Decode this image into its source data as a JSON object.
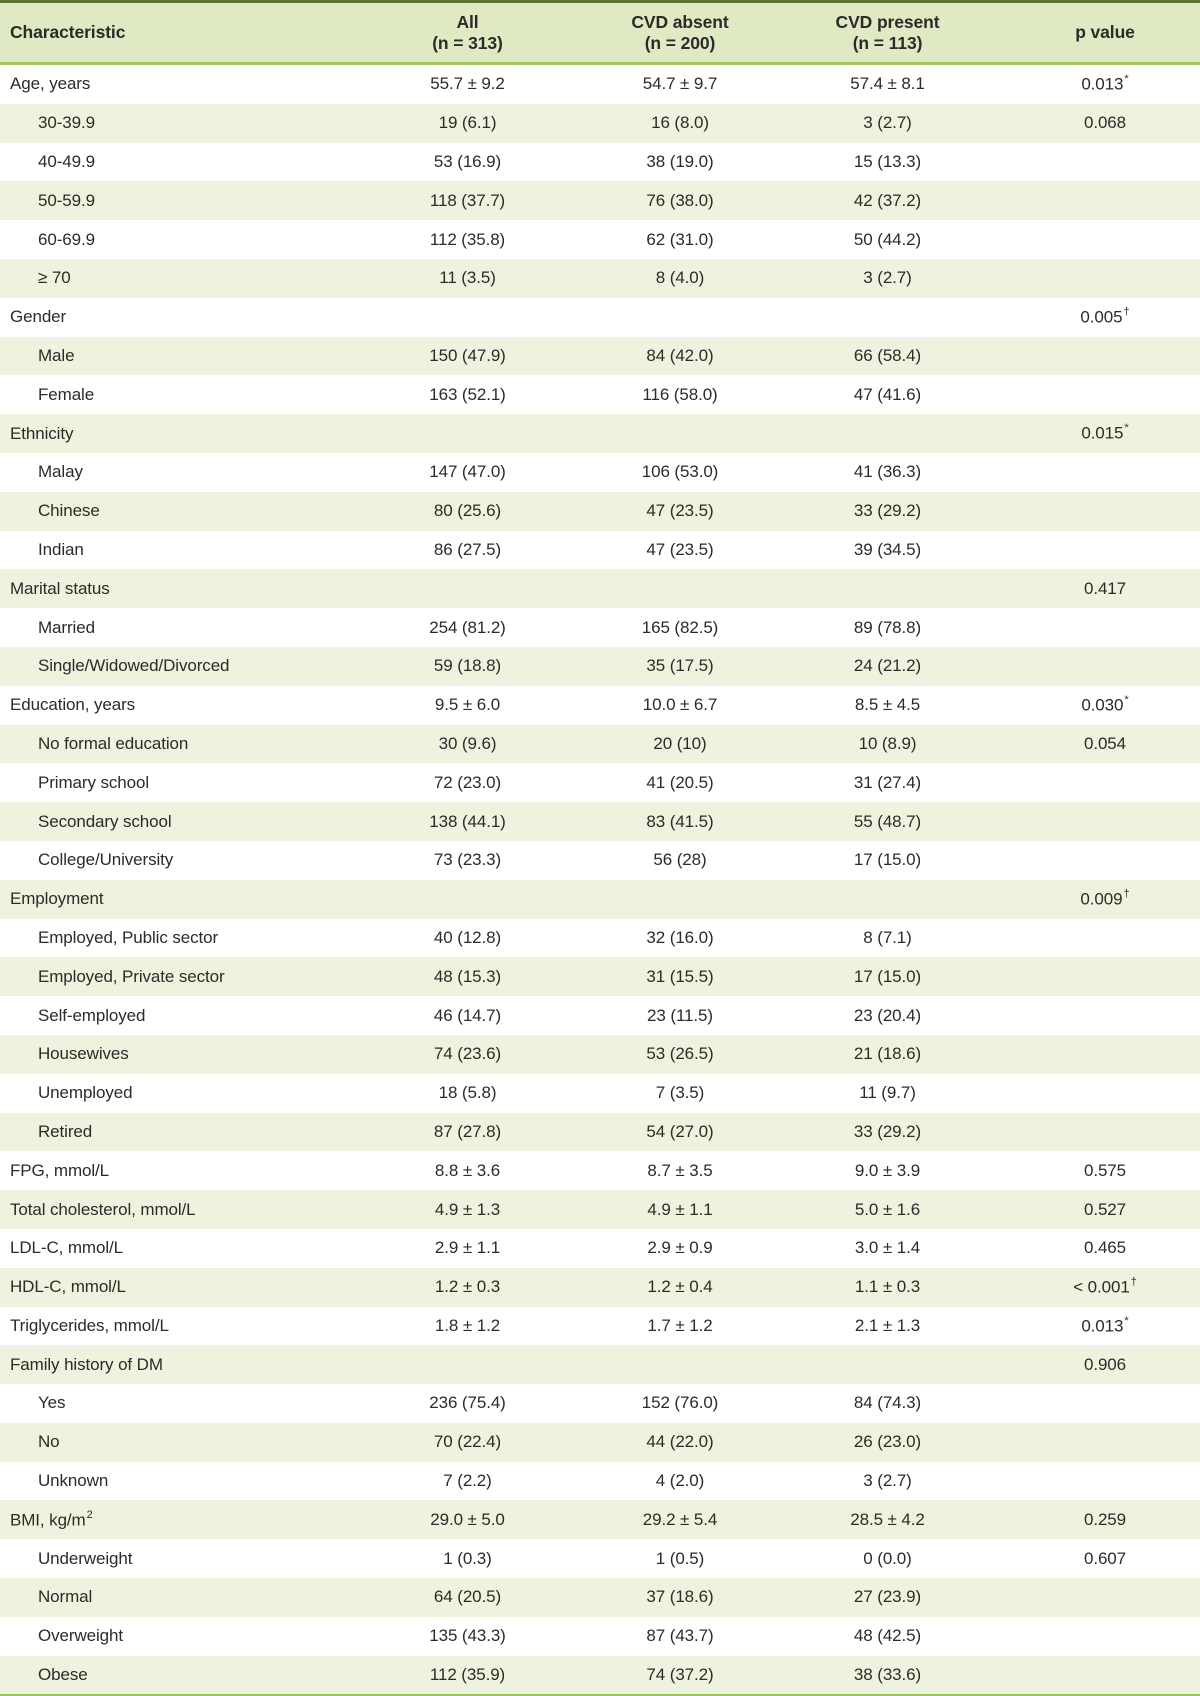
{
  "colors": {
    "header_bg": "#dfe9c4",
    "row_bg": "#ffffff",
    "row_alt_bg": "#eef2df",
    "border_top": "#5c7433",
    "border_header_separator": "#a4c85e",
    "border_bottom": "#9cc353",
    "text": "#2d2b28"
  },
  "table": {
    "header": {
      "characteristic": "Characteristic",
      "all_line1": "All",
      "all_line2": "(n = 313)",
      "cvd_absent_line1": "CVD absent",
      "cvd_absent_line2": "(n = 200)",
      "cvd_present_line1": "CVD present",
      "cvd_present_line2": "(n = 113)",
      "p_value": "p value"
    },
    "rows": [
      {
        "label": "Age, years",
        "indent": false,
        "all": "55.7 ± 9.2",
        "cvd_absent": "54.7 ± 9.7",
        "cvd_present": "57.4 ± 8.1",
        "p": "0.013",
        "p_sup": "*"
      },
      {
        "label": "30-39.9",
        "indent": true,
        "all": "19 (6.1)",
        "cvd_absent": "16 (8.0)",
        "cvd_present": "3 (2.7)",
        "p": "0.068",
        "p_sup": ""
      },
      {
        "label": "40-49.9",
        "indent": true,
        "all": "53 (16.9)",
        "cvd_absent": "38 (19.0)",
        "cvd_present": "15 (13.3)",
        "p": "",
        "p_sup": ""
      },
      {
        "label": "50-59.9",
        "indent": true,
        "all": "118 (37.7)",
        "cvd_absent": "76 (38.0)",
        "cvd_present": "42 (37.2)",
        "p": "",
        "p_sup": ""
      },
      {
        "label": "60-69.9",
        "indent": true,
        "all": "112 (35.8)",
        "cvd_absent": "62 (31.0)",
        "cvd_present": "50 (44.2)",
        "p": "",
        "p_sup": ""
      },
      {
        "label": "≥ 70",
        "indent": true,
        "all": "11 (3.5)",
        "cvd_absent": "8 (4.0)",
        "cvd_present": "3 (2.7)",
        "p": "",
        "p_sup": ""
      },
      {
        "label": "Gender",
        "indent": false,
        "all": "",
        "cvd_absent": "",
        "cvd_present": "",
        "p": "0.005",
        "p_sup": "†"
      },
      {
        "label": "Male",
        "indent": true,
        "all": "150 (47.9)",
        "cvd_absent": "84 (42.0)",
        "cvd_present": "66 (58.4)",
        "p": "",
        "p_sup": ""
      },
      {
        "label": "Female",
        "indent": true,
        "all": "163 (52.1)",
        "cvd_absent": "116 (58.0)",
        "cvd_present": "47 (41.6)",
        "p": "",
        "p_sup": ""
      },
      {
        "label": "Ethnicity",
        "indent": false,
        "all": "",
        "cvd_absent": "",
        "cvd_present": "",
        "p": "0.015",
        "p_sup": "*"
      },
      {
        "label": "Malay",
        "indent": true,
        "all": "147 (47.0)",
        "cvd_absent": "106 (53.0)",
        "cvd_present": "41 (36.3)",
        "p": "",
        "p_sup": ""
      },
      {
        "label": "Chinese",
        "indent": true,
        "all": "80 (25.6)",
        "cvd_absent": "47 (23.5)",
        "cvd_present": "33 (29.2)",
        "p": "",
        "p_sup": ""
      },
      {
        "label": "Indian",
        "indent": true,
        "all": "86 (27.5)",
        "cvd_absent": "47 (23.5)",
        "cvd_present": "39 (34.5)",
        "p": "",
        "p_sup": ""
      },
      {
        "label": "Marital status",
        "indent": false,
        "all": "",
        "cvd_absent": "",
        "cvd_present": "",
        "p": "0.417",
        "p_sup": ""
      },
      {
        "label": "Married",
        "indent": true,
        "all": "254 (81.2)",
        "cvd_absent": "165 (82.5)",
        "cvd_present": "89 (78.8)",
        "p": "",
        "p_sup": ""
      },
      {
        "label": "Single/Widowed/Divorced",
        "indent": true,
        "all": "59 (18.8)",
        "cvd_absent": "35 (17.5)",
        "cvd_present": "24 (21.2)",
        "p": "",
        "p_sup": ""
      },
      {
        "label": "Education, years",
        "indent": false,
        "all": "9.5 ± 6.0",
        "cvd_absent": "10.0 ± 6.7",
        "cvd_present": "8.5 ± 4.5",
        "p": "0.030",
        "p_sup": "*"
      },
      {
        "label": "No formal education",
        "indent": true,
        "all": "30 (9.6)",
        "cvd_absent": "20 (10)",
        "cvd_present": "10 (8.9)",
        "p": "0.054",
        "p_sup": ""
      },
      {
        "label": "Primary school",
        "indent": true,
        "all": "72 (23.0)",
        "cvd_absent": "41 (20.5)",
        "cvd_present": "31 (27.4)",
        "p": "",
        "p_sup": ""
      },
      {
        "label": "Secondary school",
        "indent": true,
        "all": "138 (44.1)",
        "cvd_absent": "83 (41.5)",
        "cvd_present": "55 (48.7)",
        "p": "",
        "p_sup": ""
      },
      {
        "label": "College/University",
        "indent": true,
        "all": "73 (23.3)",
        "cvd_absent": "56 (28)",
        "cvd_present": "17 (15.0)",
        "p": "",
        "p_sup": ""
      },
      {
        "label": "Employment",
        "indent": false,
        "all": "",
        "cvd_absent": "",
        "cvd_present": "",
        "p": "0.009",
        "p_sup": "†"
      },
      {
        "label": "Employed, Public sector",
        "indent": true,
        "all": "40 (12.8)",
        "cvd_absent": "32 (16.0)",
        "cvd_present": "8 (7.1)",
        "p": "",
        "p_sup": ""
      },
      {
        "label": "Employed, Private sector",
        "indent": true,
        "all": "48 (15.3)",
        "cvd_absent": "31 (15.5)",
        "cvd_present": "17 (15.0)",
        "p": "",
        "p_sup": ""
      },
      {
        "label": "Self-employed",
        "indent": true,
        "all": "46 (14.7)",
        "cvd_absent": "23 (11.5)",
        "cvd_present": "23 (20.4)",
        "p": "",
        "p_sup": ""
      },
      {
        "label": "Housewives",
        "indent": true,
        "all": "74 (23.6)",
        "cvd_absent": "53 (26.5)",
        "cvd_present": "21 (18.6)",
        "p": "",
        "p_sup": ""
      },
      {
        "label": "Unemployed",
        "indent": true,
        "all": "18 (5.8)",
        "cvd_absent": "7 (3.5)",
        "cvd_present": "11 (9.7)",
        "p": "",
        "p_sup": ""
      },
      {
        "label": "Retired",
        "indent": true,
        "all": "87 (27.8)",
        "cvd_absent": "54 (27.0)",
        "cvd_present": "33 (29.2)",
        "p": "",
        "p_sup": ""
      },
      {
        "label": "FPG, mmol/L",
        "indent": false,
        "all": "8.8 ± 3.6",
        "cvd_absent": "8.7 ± 3.5",
        "cvd_present": "9.0 ± 3.9",
        "p": "0.575",
        "p_sup": ""
      },
      {
        "label": "Total cholesterol, mmol/L",
        "indent": false,
        "all": "4.9 ± 1.3",
        "cvd_absent": "4.9 ± 1.1",
        "cvd_present": "5.0 ± 1.6",
        "p": "0.527",
        "p_sup": ""
      },
      {
        "label": "LDL-C, mmol/L",
        "indent": false,
        "all": "2.9 ± 1.1",
        "cvd_absent": "2.9 ± 0.9",
        "cvd_present": "3.0 ± 1.4",
        "p": "0.465",
        "p_sup": ""
      },
      {
        "label": "HDL-C, mmol/L",
        "indent": false,
        "all": "1.2 ± 0.3",
        "cvd_absent": "1.2 ± 0.4",
        "cvd_present": "1.1 ± 0.3",
        "p": "< 0.001",
        "p_sup": "†"
      },
      {
        "label": "Triglycerides, mmol/L",
        "indent": false,
        "all": "1.8 ± 1.2",
        "cvd_absent": "1.7 ± 1.2",
        "cvd_present": "2.1 ± 1.3",
        "p": "0.013",
        "p_sup": "*"
      },
      {
        "label": "Family history of DM",
        "indent": false,
        "all": "",
        "cvd_absent": "",
        "cvd_present": "",
        "p": "0.906",
        "p_sup": ""
      },
      {
        "label": "Yes",
        "indent": true,
        "all": "236 (75.4)",
        "cvd_absent": "152 (76.0)",
        "cvd_present": "84 (74.3)",
        "p": "",
        "p_sup": ""
      },
      {
        "label": "No",
        "indent": true,
        "all": "70 (22.4)",
        "cvd_absent": "44 (22.0)",
        "cvd_present": "26 (23.0)",
        "p": "",
        "p_sup": ""
      },
      {
        "label": "Unknown",
        "indent": true,
        "all": "7 (2.2)",
        "cvd_absent": "4 (2.0)",
        "cvd_present": "3 (2.7)",
        "p": "",
        "p_sup": ""
      },
      {
        "label": "BMI, kg/m",
        "label_sup": "2",
        "indent": false,
        "all": "29.0 ± 5.0",
        "cvd_absent": "29.2 ± 5.4",
        "cvd_present": "28.5 ± 4.2",
        "p": "0.259",
        "p_sup": ""
      },
      {
        "label": "Underweight",
        "indent": true,
        "all": "1 (0.3)",
        "cvd_absent": "1 (0.5)",
        "cvd_present": "0 (0.0)",
        "p": "0.607",
        "p_sup": ""
      },
      {
        "label": "Normal",
        "indent": true,
        "all": "64 (20.5)",
        "cvd_absent": "37 (18.6)",
        "cvd_present": "27 (23.9)",
        "p": "",
        "p_sup": ""
      },
      {
        "label": "Overweight",
        "indent": true,
        "all": "135 (43.3)",
        "cvd_absent": "87 (43.7)",
        "cvd_present": "48 (42.5)",
        "p": "",
        "p_sup": ""
      },
      {
        "label": "Obese",
        "indent": true,
        "all": "112 (35.9)",
        "cvd_absent": "74 (37.2)",
        "cvd_present": "38 (33.6)",
        "p": "",
        "p_sup": ""
      }
    ]
  }
}
